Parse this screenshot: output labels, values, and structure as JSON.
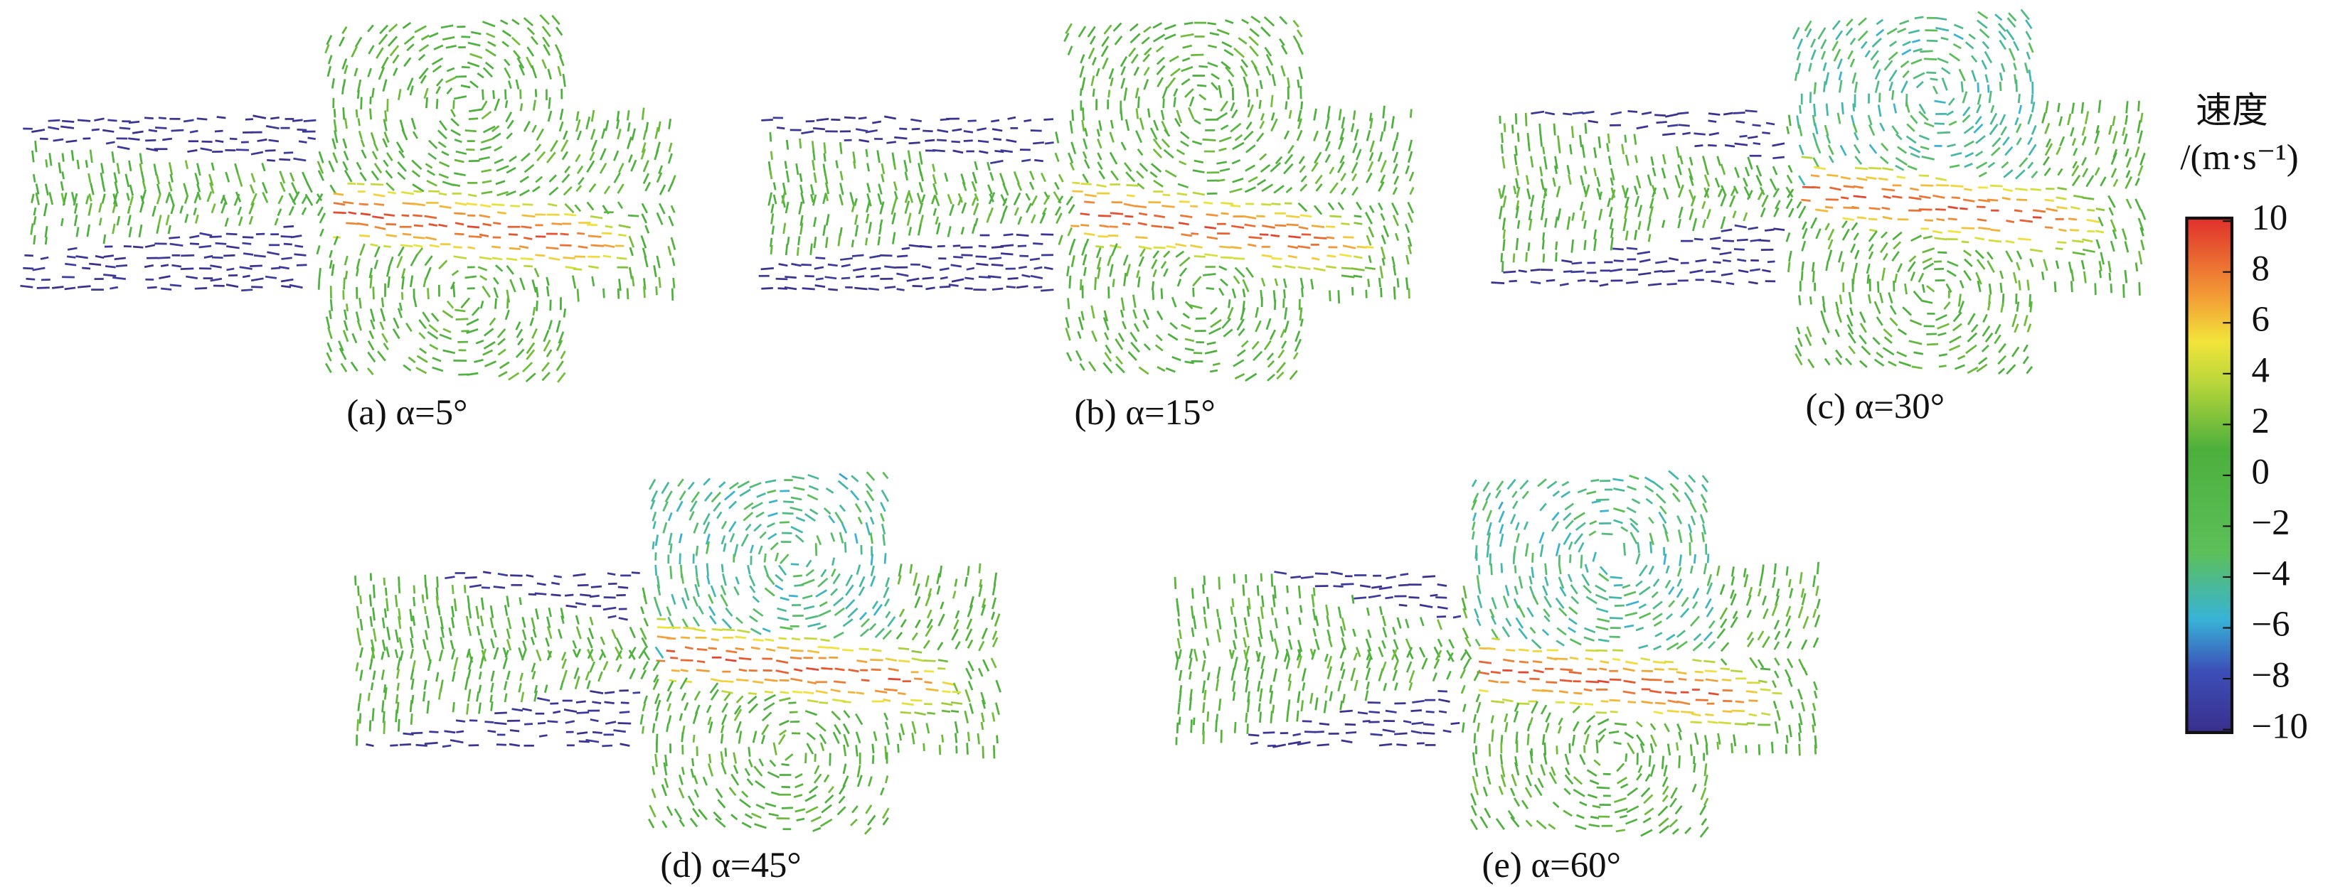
{
  "panels": [
    {
      "caption": "(a) α=5°"
    },
    {
      "caption": "(b) α=15°"
    },
    {
      "caption": "(c) α=30°"
    },
    {
      "caption": "(d) α=45°"
    },
    {
      "caption": "(e) α=60°"
    }
  ],
  "colorbar": {
    "title": "速度",
    "unit": "/(m·s⁻¹)",
    "ticks": [
      10,
      8,
      6,
      4,
      2,
      0,
      {
        "value": -2,
        "label": "−2"
      },
      {
        "value": -4,
        "label": "−4"
      },
      {
        "value": -6,
        "label": "−6"
      },
      {
        "value": -8,
        "label": "−8"
      },
      {
        "value": -10,
        "label": "−10"
      }
    ]
  }
}
